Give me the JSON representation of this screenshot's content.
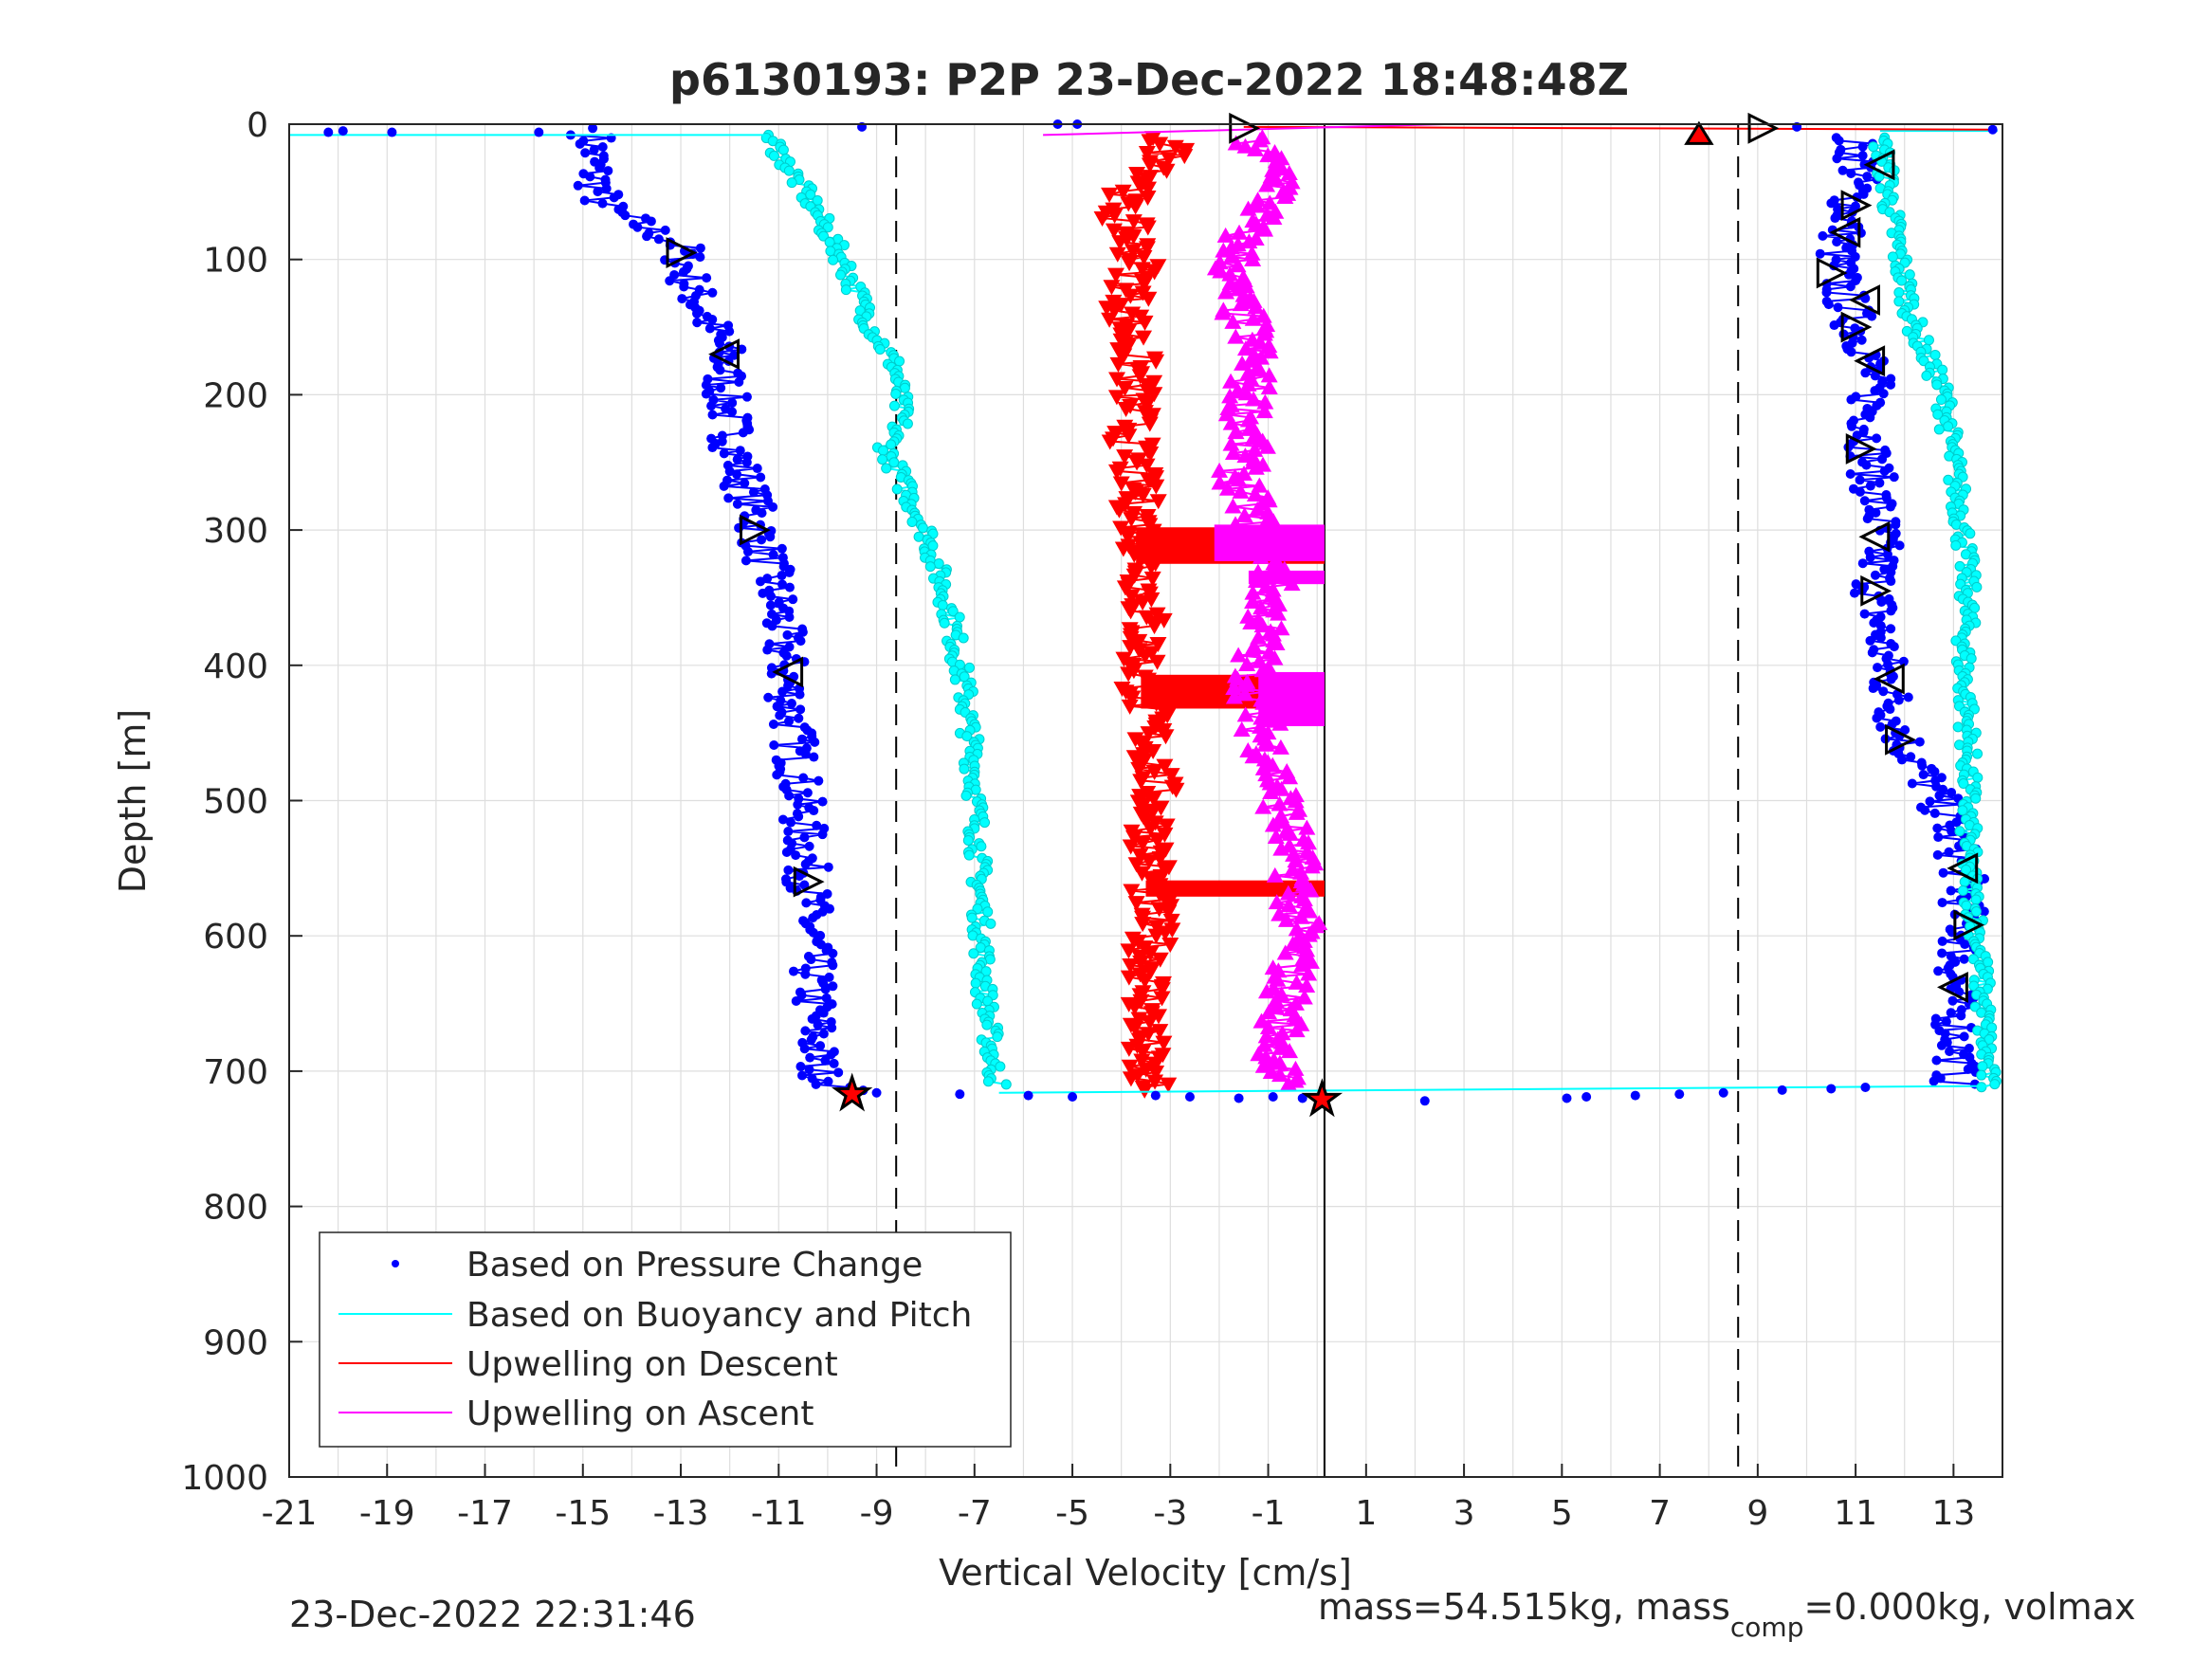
{
  "chart_data": {
    "type": "scatter",
    "title": "p6130193: P2P 23-Dec-2022 18:48:48Z",
    "xlabel": "Vertical Velocity [cm/s]",
    "ylabel": "Depth [m]",
    "xlim": [
      -21,
      14
    ],
    "ylim": [
      0,
      1000
    ],
    "y_reversed": true,
    "grid": true,
    "x_ticks": [
      "-21",
      "-19",
      "-17",
      "-15",
      "-13",
      "-11",
      "-9",
      "-7",
      "-5",
      "-3",
      "-1",
      "1",
      "3",
      "5",
      "7",
      "9",
      "11",
      "13"
    ],
    "y_ticks": [
      "0",
      "100",
      "200",
      "300",
      "400",
      "500",
      "600",
      "700",
      "800",
      "900",
      "1000"
    ],
    "reference_lines": {
      "dashed_x": [
        -8.6,
        8.6
      ],
      "solid_x": [
        0.15
      ]
    },
    "legend_position": "bottom-left",
    "series": [
      {
        "name": "Based on Pressure Change",
        "color": "#0000ff",
        "marker": "dot",
        "descent": {
          "depth": [
            8,
            30,
            60,
            90,
            120,
            170,
            200,
            240,
            300,
            360,
            420,
            480,
            560,
            640,
            700,
            715
          ],
          "velocity": [
            -14.8,
            -14.8,
            -14.6,
            -13.0,
            -12.8,
            -12.1,
            -12.1,
            -11.9,
            -11.4,
            -11.0,
            -10.8,
            -10.6,
            -10.4,
            -10.3,
            -10.2,
            -9.6
          ]
        },
        "ascent": {
          "depth": [
            710,
            690,
            640,
            600,
            550,
            500,
            450,
            400,
            350,
            300,
            250,
            200,
            170,
            150,
            120,
            100,
            60,
            30,
            10
          ],
          "velocity": [
            13.0,
            13.1,
            13.0,
            13.2,
            13.2,
            12.7,
            11.9,
            11.6,
            11.4,
            11.5,
            11.3,
            11.3,
            11.3,
            11.0,
            10.7,
            10.6,
            10.9,
            11.1,
            10.9
          ]
        }
      },
      {
        "name": "Based on Buoyancy and Pitch",
        "color": "#00ffff",
        "marker": "circle",
        "descent": {
          "depth": [
            8,
            20,
            60,
            100,
            150,
            180,
            220,
            240,
            300,
            360,
            420,
            480,
            560,
            640,
            700,
            712
          ],
          "velocity": [
            -11.2,
            -11.0,
            -10.3,
            -9.7,
            -9.1,
            -8.6,
            -8.5,
            -8.8,
            -8.0,
            -7.5,
            -7.2,
            -7.0,
            -6.9,
            -6.8,
            -6.6,
            -6.5
          ]
        },
        "ascent": {
          "depth": [
            712,
            650,
            600,
            550,
            500,
            450,
            400,
            350,
            300,
            250,
            200,
            150,
            100,
            60,
            30,
            10
          ],
          "velocity": [
            13.7,
            13.6,
            13.5,
            13.3,
            13.3,
            13.3,
            13.2,
            13.3,
            13.2,
            13.0,
            12.8,
            12.2,
            11.9,
            11.7,
            11.6,
            11.5
          ]
        }
      },
      {
        "name": "Upwelling on Descent",
        "color": "#ff0000",
        "marker": "triangle-down",
        "depth": [
          10,
          30,
          60,
          100,
          140,
          180,
          240,
          300,
          320,
          360,
          410,
          430,
          480,
          560,
          570,
          620,
          700,
          715
        ],
        "velocity": [
          -3.1,
          -3.0,
          -4.1,
          -3.6,
          -3.9,
          -3.7,
          -3.8,
          -3.6,
          -3.5,
          -3.5,
          -3.6,
          -3.5,
          -3.3,
          -3.4,
          -3.4,
          -3.4,
          -3.6,
          -3.4
        ],
        "bands": [
          {
            "depth_from": 298,
            "depth_to": 325,
            "v_from": -3.7,
            "v_to": 0.15
          },
          {
            "depth_from": 407,
            "depth_to": 432,
            "v_from": -3.6,
            "v_to": 0.15
          },
          {
            "depth_from": 559,
            "depth_to": 571,
            "v_from": -3.5,
            "v_to": 0.15
          }
        ]
      },
      {
        "name": "Upwelling on Ascent",
        "color": "#ff00ff",
        "marker": "triangle-up",
        "depth": [
          710,
          660,
          600,
          560,
          520,
          470,
          440,
          400,
          360,
          330,
          300,
          260,
          230,
          200,
          160,
          120,
          80,
          40,
          10
        ],
        "velocity": [
          -0.8,
          -0.7,
          -0.4,
          -0.4,
          -0.6,
          -0.9,
          -1.2,
          -1.3,
          -1.0,
          -0.9,
          -1.2,
          -1.6,
          -1.4,
          -1.4,
          -1.3,
          -1.8,
          -1.5,
          -0.6,
          -1.5
        ],
        "bands": [
          {
            "depth_from": 296,
            "depth_to": 323,
            "v_from": -2.1,
            "v_to": 0.15
          },
          {
            "depth_from": 330,
            "depth_to": 340,
            "v_from": -1.4,
            "v_to": 0.15
          },
          {
            "depth_from": 405,
            "depth_to": 445,
            "v_from": -1.2,
            "v_to": 0.15
          }
        ]
      }
    ],
    "waypoint_markers": {
      "descent_depth": [
        95,
        170,
        300,
        405,
        560
      ],
      "descent_velocity": [
        -13.0,
        -12.1,
        -11.5,
        -10.8,
        -10.4
      ],
      "ascent_depth": [
        30,
        60,
        80,
        110,
        130,
        150,
        175,
        240,
        305,
        345,
        410,
        455,
        550,
        592,
        638
      ],
      "ascent_velocity": [
        11.5,
        11.0,
        10.8,
        10.5,
        11.2,
        11.0,
        11.3,
        11.1,
        11.4,
        11.4,
        11.7,
        11.9,
        13.2,
        13.3,
        13.0
      ]
    }
  },
  "footer": {
    "timestamp": "23-Dec-2022 22:31:46",
    "mass_text_1": "mass=54.515kg, mass",
    "mass_subscript": "comp",
    "mass_text_2": "=0.000kg, volmax"
  }
}
